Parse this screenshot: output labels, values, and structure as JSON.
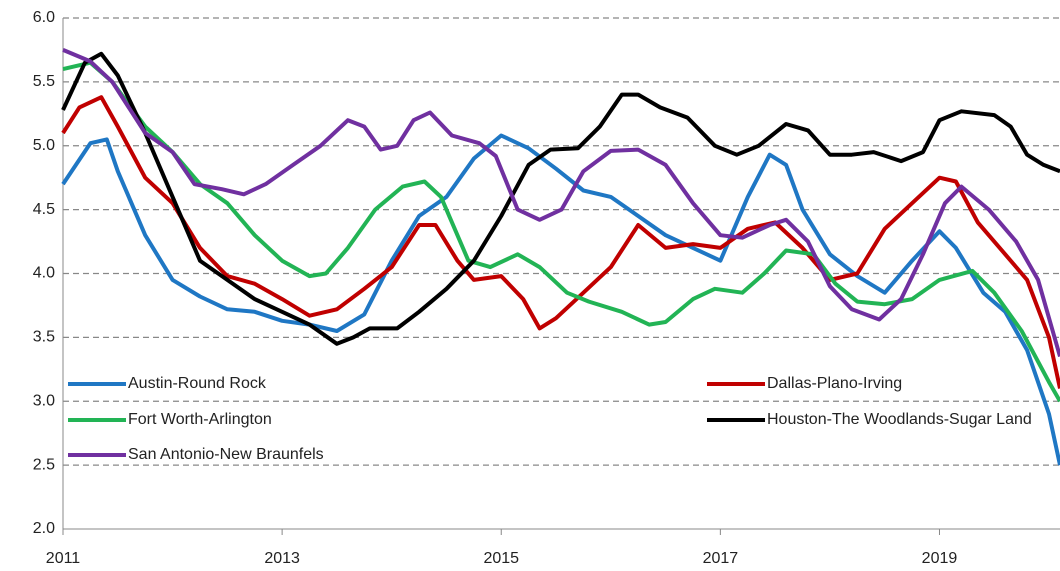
{
  "chart_data": {
    "type": "line",
    "xlim": [
      2011,
      2020.1
    ],
    "xticks": [
      2011,
      2013,
      2015,
      2017,
      2019
    ],
    "ylim": [
      2,
      6
    ],
    "yticks": [
      {
        "value": 2,
        "label": "2.0"
      },
      2.5,
      {
        "value": 3,
        "label": "3.0"
      },
      3.5,
      {
        "value": 4,
        "label": "4.0"
      },
      4.5,
      {
        "value": 5,
        "label": "5.0"
      },
      5.5,
      {
        "value": 6,
        "label": "6.0"
      }
    ],
    "grid": true,
    "legend": "lower left",
    "series": [
      {
        "name": "Austin-Round Rock",
        "color": "#1f77c4",
        "x": [
          2011,
          2011.25,
          2011.4,
          2011.5,
          2011.75,
          2012,
          2012.25,
          2012.5,
          2012.75,
          2013,
          2013.25,
          2013.5,
          2013.75,
          2014,
          2014.25,
          2014.5,
          2014.75,
          2015,
          2015.25,
          2015.5,
          2015.75,
          2016,
          2016.25,
          2016.5,
          2016.75,
          2017,
          2017.25,
          2017.45,
          2017.6,
          2017.75,
          2018,
          2018.25,
          2018.5,
          2018.75,
          2019,
          2019.15,
          2019.4,
          2019.6,
          2019.8,
          2020,
          2020.1
        ],
        "values": [
          4.7,
          5.02,
          5.05,
          4.8,
          4.3,
          3.95,
          3.82,
          3.72,
          3.7,
          3.63,
          3.6,
          3.55,
          3.68,
          4.1,
          4.45,
          4.6,
          4.9,
          5.08,
          4.98,
          4.82,
          4.65,
          4.6,
          4.45,
          4.3,
          4.2,
          4.1,
          4.6,
          4.93,
          4.85,
          4.5,
          4.15,
          3.98,
          3.85,
          4.1,
          4.33,
          4.2,
          3.85,
          3.7,
          3.4,
          2.9,
          2.5
        ]
      },
      {
        "name": "Dallas-Plano-Irving",
        "color": "#c00000",
        "x": [
          2011,
          2011.15,
          2011.35,
          2011.5,
          2011.75,
          2012,
          2012.25,
          2012.5,
          2012.75,
          2013,
          2013.25,
          2013.5,
          2013.75,
          2014,
          2014.25,
          2014.4,
          2014.6,
          2014.75,
          2015,
          2015.2,
          2015.35,
          2015.5,
          2015.75,
          2016,
          2016.25,
          2016.5,
          2016.75,
          2017,
          2017.25,
          2017.5,
          2017.75,
          2018,
          2018.25,
          2018.5,
          2018.75,
          2019,
          2019.15,
          2019.35,
          2019.6,
          2019.8,
          2020,
          2020.1
        ],
        "values": [
          5.1,
          5.3,
          5.38,
          5.15,
          4.75,
          4.55,
          4.2,
          3.98,
          3.92,
          3.8,
          3.67,
          3.72,
          3.88,
          4.05,
          4.38,
          4.38,
          4.1,
          3.95,
          3.98,
          3.8,
          3.57,
          3.65,
          3.85,
          4.05,
          4.38,
          4.2,
          4.23,
          4.2,
          4.35,
          4.4,
          4.2,
          3.95,
          4.0,
          4.35,
          4.55,
          4.75,
          4.72,
          4.4,
          4.15,
          3.95,
          3.5,
          3.1
        ]
      },
      {
        "name": "Fort Worth-Arlington",
        "color": "#22b455",
        "x": [
          2011,
          2011.25,
          2011.45,
          2011.75,
          2012,
          2012.25,
          2012.5,
          2012.75,
          2013,
          2013.25,
          2013.4,
          2013.6,
          2013.85,
          2014.1,
          2014.3,
          2014.45,
          2014.7,
          2014.9,
          2015.15,
          2015.35,
          2015.6,
          2015.8,
          2016.1,
          2016.35,
          2016.5,
          2016.75,
          2016.95,
          2017.2,
          2017.4,
          2017.6,
          2017.85,
          2018.05,
          2018.25,
          2018.5,
          2018.75,
          2019,
          2019.3,
          2019.5,
          2019.75,
          2020,
          2020.1
        ],
        "values": [
          5.6,
          5.65,
          5.5,
          5.15,
          4.95,
          4.7,
          4.55,
          4.3,
          4.1,
          3.98,
          4.0,
          4.2,
          4.5,
          4.68,
          4.72,
          4.6,
          4.1,
          4.05,
          4.15,
          4.05,
          3.85,
          3.78,
          3.7,
          3.6,
          3.62,
          3.8,
          3.88,
          3.85,
          4.0,
          4.18,
          4.15,
          3.92,
          3.78,
          3.76,
          3.8,
          3.95,
          4.02,
          3.85,
          3.55,
          3.15,
          3.0
        ]
      },
      {
        "name": "Houston-The Woodlands-Sugar Land",
        "color": "#000000",
        "x": [
          2011,
          2011.2,
          2011.35,
          2011.5,
          2011.75,
          2012,
          2012.25,
          2012.5,
          2012.75,
          2013,
          2013.25,
          2013.5,
          2013.65,
          2013.8,
          2014.05,
          2014.25,
          2014.5,
          2014.75,
          2015,
          2015.25,
          2015.45,
          2015.7,
          2015.9,
          2016.1,
          2016.25,
          2016.45,
          2016.7,
          2016.95,
          2017.15,
          2017.35,
          2017.6,
          2017.8,
          2018,
          2018.2,
          2018.4,
          2018.65,
          2018.85,
          2019,
          2019.2,
          2019.5,
          2019.65,
          2019.8,
          2019.95,
          2020.1
        ],
        "values": [
          5.28,
          5.65,
          5.72,
          5.55,
          5.1,
          4.6,
          4.1,
          3.95,
          3.8,
          3.7,
          3.6,
          3.45,
          3.5,
          3.57,
          3.57,
          3.7,
          3.88,
          4.1,
          4.45,
          4.85,
          4.97,
          4.98,
          5.15,
          5.4,
          5.4,
          5.3,
          5.22,
          5.0,
          4.93,
          5.0,
          5.17,
          5.12,
          4.93,
          4.93,
          4.95,
          4.88,
          4.95,
          5.2,
          5.27,
          5.24,
          5.15,
          4.93,
          4.85,
          4.8
        ]
      },
      {
        "name": "San Antonio-New Braunfels",
        "color": "#7030a0",
        "x": [
          2011,
          2011.25,
          2011.45,
          2011.75,
          2012,
          2012.2,
          2012.45,
          2012.65,
          2012.85,
          2013.1,
          2013.35,
          2013.6,
          2013.75,
          2013.9,
          2014.05,
          2014.2,
          2014.35,
          2014.55,
          2014.8,
          2014.95,
          2015.15,
          2015.35,
          2015.55,
          2015.75,
          2016,
          2016.25,
          2016.5,
          2016.75,
          2017,
          2017.2,
          2017.45,
          2017.6,
          2017.8,
          2018,
          2018.2,
          2018.45,
          2018.65,
          2018.85,
          2019.05,
          2019.2,
          2019.45,
          2019.7,
          2019.9,
          2020.1
        ],
        "values": [
          5.75,
          5.66,
          5.5,
          5.1,
          4.95,
          4.7,
          4.66,
          4.62,
          4.7,
          4.85,
          5.0,
          5.2,
          5.15,
          4.97,
          5.0,
          5.2,
          5.26,
          5.08,
          5.02,
          4.92,
          4.5,
          4.42,
          4.5,
          4.8,
          4.96,
          4.97,
          4.85,
          4.55,
          4.3,
          4.28,
          4.38,
          4.42,
          4.25,
          3.9,
          3.72,
          3.64,
          3.8,
          4.15,
          4.55,
          4.68,
          4.5,
          4.25,
          3.95,
          3.35
        ]
      }
    ]
  }
}
